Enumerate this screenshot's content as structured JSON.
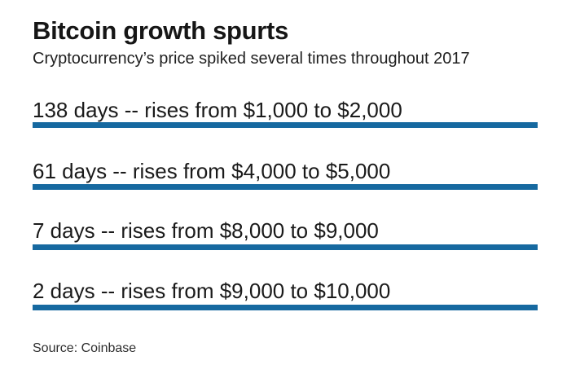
{
  "header": {
    "title": "Bitcoin growth spurts",
    "subtitle": "Cryptocurrency’s price spiked several times throughout 2017"
  },
  "rows": [
    {
      "label": "138 days -- rises from $1,000 to $2,000"
    },
    {
      "label": "61 days -- rises from $4,000 to $5,000"
    },
    {
      "label": "7 days -- rises from $8,000 to $9,000"
    },
    {
      "label": "2 days -- rises from $9,000 to $10,000"
    }
  ],
  "footer": {
    "source": "Source: Coinbase"
  },
  "colors": {
    "bar_blue": "#1669a0",
    "text_dark": "#1a1a1a",
    "background": "#ffffff"
  },
  "chart_data": {
    "type": "table",
    "title": "Bitcoin growth spurts",
    "subtitle": "Cryptocurrency’s price spiked several times throughout 2017",
    "columns": [
      "days_to_rise",
      "price_from_usd",
      "price_to_usd"
    ],
    "rows": [
      {
        "days_to_rise": 138,
        "price_from_usd": 1000,
        "price_to_usd": 2000
      },
      {
        "days_to_rise": 61,
        "price_from_usd": 4000,
        "price_to_usd": 5000
      },
      {
        "days_to_rise": 7,
        "price_from_usd": 8000,
        "price_to_usd": 9000
      },
      {
        "days_to_rise": 2,
        "price_from_usd": 9000,
        "price_to_usd": 10000
      }
    ],
    "source": "Source: Coinbase",
    "layout": {
      "legend": false,
      "grid": false,
      "row_divider_color": "#1669a0"
    }
  }
}
